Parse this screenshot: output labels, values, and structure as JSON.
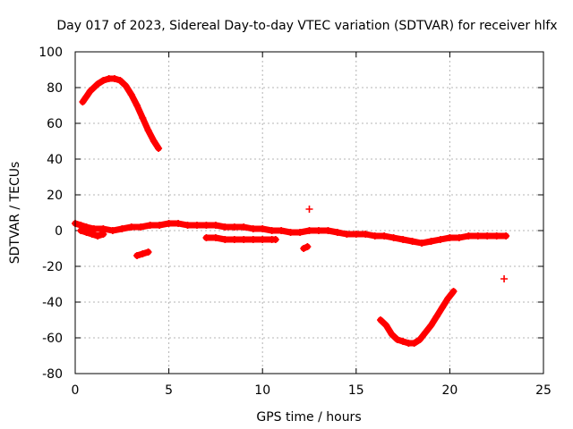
{
  "chart_data": {
    "type": "scatter",
    "title": "Day 017 of 2023, Sidereal Day-to-day VTEC variation (SDTVAR) for receiver hlfx",
    "xlabel": "GPS time / hours",
    "ylabel": "SDTVAR / TECUs",
    "xlim": [
      0,
      25
    ],
    "ylim": [
      -80,
      100
    ],
    "x_ticks": [
      0,
      5,
      10,
      15,
      20,
      25
    ],
    "y_ticks": [
      -80,
      -60,
      -40,
      -20,
      0,
      20,
      40,
      60,
      80,
      100
    ],
    "grid": true,
    "marker": "plus",
    "series": [
      {
        "name": "SDTVAR",
        "color": "#ff0000",
        "tracks": [
          {
            "id": "high-arc",
            "x": [
              0.4,
              0.6,
              0.8,
              1.0,
              1.2,
              1.5,
              1.8,
              2.1,
              2.4,
              2.7,
              3.0,
              3.3,
              3.6,
              3.9,
              4.2,
              4.45
            ],
            "y": [
              72,
              75,
              78,
              80,
              82,
              84,
              85,
              85,
              84,
              81,
              76,
              70,
              63,
              56,
              50,
              46
            ]
          },
          {
            "id": "baseline-main",
            "x": [
              0.0,
              0.3,
              0.6,
              1.0,
              1.5,
              2.0,
              2.5,
              3.0,
              3.5,
              4.0,
              4.5,
              5.0,
              5.5,
              6.0,
              6.5,
              7.0,
              7.5,
              8.0,
              8.5,
              9.0,
              9.5,
              10.0,
              10.5,
              11.0,
              11.5,
              12.0,
              12.5,
              13.0,
              13.5,
              14.0,
              14.5,
              15.0,
              15.5,
              16.0,
              16.5,
              17.0,
              17.5,
              18.0,
              18.5,
              19.0,
              19.5,
              20.0,
              20.5,
              21.0,
              21.5,
              22.0,
              22.5,
              23.0
            ],
            "y": [
              4,
              3,
              2,
              1,
              1,
              0,
              1,
              2,
              2,
              3,
              3,
              4,
              4,
              3,
              3,
              3,
              3,
              2,
              2,
              2,
              1,
              1,
              0,
              0,
              -1,
              -1,
              0,
              0,
              0,
              -1,
              -2,
              -2,
              -2,
              -3,
              -3,
              -4,
              -5,
              -6,
              -7,
              -6,
              -5,
              -4,
              -4,
              -3,
              -3,
              -3,
              -3,
              -3
            ]
          },
          {
            "id": "baseline-lower",
            "x": [
              0.3,
              0.6,
              0.9,
              1.2,
              1.5
            ],
            "y": [
              0,
              -1,
              -2,
              -3,
              -2
            ]
          },
          {
            "id": "lower-band",
            "x": [
              7.0,
              7.5,
              8.0,
              8.5,
              9.0,
              9.5,
              10.0,
              10.5,
              10.7
            ],
            "y": [
              -4,
              -4,
              -5,
              -5,
              -5,
              -5,
              -5,
              -5,
              -5
            ]
          },
          {
            "id": "low-segment",
            "x": [
              3.3,
              3.6,
              3.9
            ],
            "y": [
              -14,
              -13,
              -12
            ]
          },
          {
            "id": "small-dip",
            "x": [
              12.2,
              12.4
            ],
            "y": [
              -10,
              -9
            ]
          },
          {
            "id": "outlier-high",
            "x": [
              12.5
            ],
            "y": [
              12
            ]
          },
          {
            "id": "outlier-low",
            "x": [
              22.9
            ],
            "y": [
              -27
            ]
          },
          {
            "id": "low-arc",
            "x": [
              16.3,
              16.6,
              16.9,
              17.2,
              17.5,
              17.8,
              18.1,
              18.4,
              18.7,
              19.0,
              19.3,
              19.6,
              19.9,
              20.2
            ],
            "y": [
              -50,
              -53,
              -58,
              -61,
              -62,
              -63,
              -63,
              -61,
              -57,
              -53,
              -48,
              -43,
              -38,
              -34
            ]
          }
        ]
      }
    ]
  }
}
